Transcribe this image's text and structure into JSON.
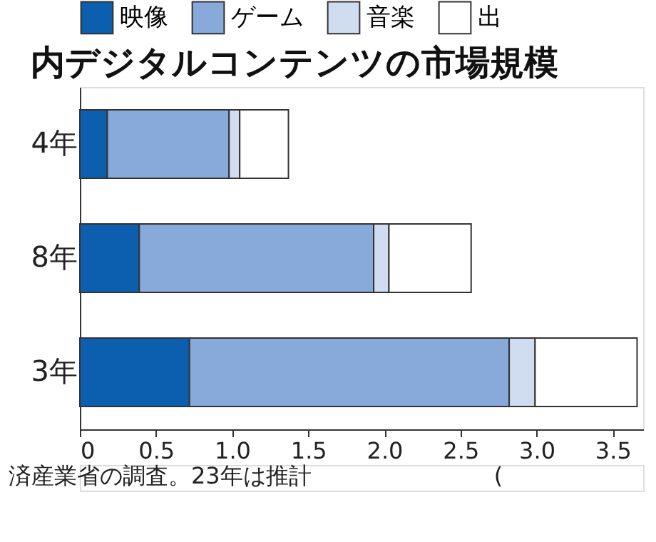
{
  "chart_data": {
    "type": "bar",
    "orientation": "horizontal",
    "stacked": true,
    "title": "内デジタルコンテンツの市場規模",
    "categories": [
      "4年",
      "8年",
      "3年"
    ],
    "series": [
      {
        "name": "映像",
        "color": "#0b5fae",
        "values": [
          0.18,
          0.39,
          0.72
        ]
      },
      {
        "name": "ゲーム",
        "color": "#88aadb",
        "values": [
          0.8,
          1.54,
          2.1
        ]
      },
      {
        "name": "音楽",
        "color": "#d0dcef",
        "values": [
          0.07,
          0.1,
          0.17
        ]
      },
      {
        "name": "出",
        "color": "#ffffff",
        "values": [
          0.32,
          0.54,
          0.67
        ]
      }
    ],
    "xlim": [
      0,
      3.7
    ],
    "xticks": [
      0,
      {
        "value": 0.5,
        "label": "0.5"
      },
      {
        "value": 1,
        "label": "1.0"
      },
      {
        "value": 1.5,
        "label": "1.5"
      },
      {
        "value": 2,
        "label": "2.0"
      },
      {
        "value": 2.5,
        "label": "2.5"
      },
      {
        "value": 3,
        "label": "3.0"
      },
      {
        "value": 3.5,
        "label": "3.5"
      }
    ],
    "grid": false,
    "legend": "top left",
    "annotations": [
      "済産業省の調査。23年は推計　　　　　　　　("
    ]
  }
}
